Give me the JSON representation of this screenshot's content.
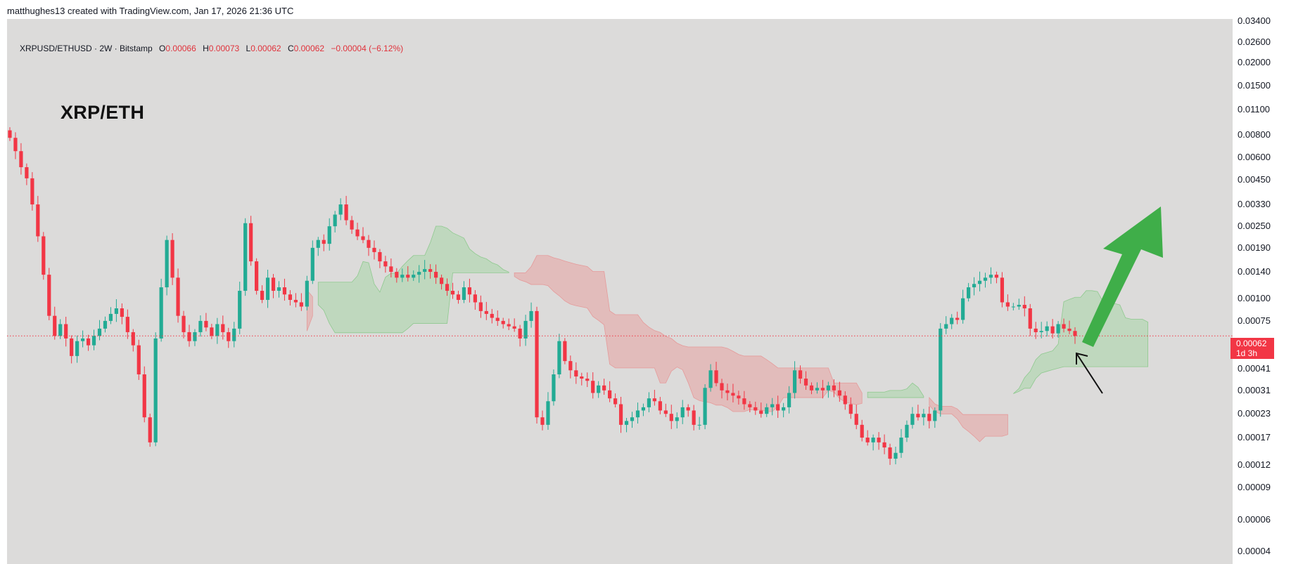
{
  "header": {
    "credit": "matthughes13 created with TradingView.com, Jan 17, 2026 21:36 UTC"
  },
  "legend": {
    "symbol": "XRPUSD/ETHUSD · 2W · Bitstamp",
    "open_label": "O",
    "open": "0.00066",
    "high_label": "H",
    "high": "0.00073",
    "low_label": "L",
    "low": "0.00062",
    "close_label": "C",
    "close": "0.00062",
    "change": "−0.00004 (−6.12%)"
  },
  "annotation_title": "XRP/ETH",
  "price_badge": {
    "price": "0.00062",
    "countdown": "1d 3h"
  },
  "colors": {
    "up": "#22ab94",
    "down": "#f23645",
    "cloud_bear": "#e8a3a3",
    "cloud_bull": "#a8d5a8",
    "arrow": "#3fae49",
    "pane_bg": "#dcdbda"
  },
  "chart_data": {
    "type": "candlestick",
    "title": "XRPUSD/ETHUSD · 2W · Bitstamp",
    "y_scale": "log",
    "ylim": [
      3.5e-05,
      0.034
    ],
    "y_ticks": [
      "0.03400",
      "0.02600",
      "0.02000",
      "0.01500",
      "0.01100",
      "0.00800",
      "0.00600",
      "0.00450",
      "0.00330",
      "0.00250",
      "0.00190",
      "0.00140",
      "0.00100",
      "0.00075",
      "0.00041",
      "0.00031",
      "0.00023",
      "0.00017",
      "0.00012",
      "0.00009",
      "0.00006",
      "0.00004"
    ],
    "last_price": 0.00062,
    "indicator": "Ichimoku Cloud",
    "close_series": [
      0.0077,
      0.0065,
      0.0053,
      0.0046,
      0.0033,
      0.0022,
      0.00135,
      0.0008,
      0.00062,
      0.00072,
      0.0006,
      0.00048,
      0.00058,
      0.0006,
      0.00055,
      0.00062,
      0.00068,
      0.00075,
      0.00082,
      0.00088,
      0.00079,
      0.00065,
      0.00055,
      0.00038,
      0.00022,
      0.00016,
      0.0006,
      0.00115,
      0.0021,
      0.0013,
      0.0008,
      0.00065,
      0.00058,
      0.00065,
      0.00075,
      0.00069,
      0.00062,
      0.00072,
      0.00065,
      0.00058,
      0.00068,
      0.0011,
      0.0026,
      0.0016,
      0.0011,
      0.00098,
      0.0013,
      0.0011,
      0.00115,
      0.00105,
      0.00098,
      0.00095,
      0.0009,
      0.00125,
      0.0019,
      0.0021,
      0.002,
      0.0025,
      0.0029,
      0.0033,
      0.0027,
      0.0024,
      0.0022,
      0.0021,
      0.0019,
      0.0018,
      0.0016,
      0.0015,
      0.0014,
      0.0013,
      0.00135,
      0.0013,
      0.00135,
      0.0014,
      0.00145,
      0.0014,
      0.0013,
      0.0012,
      0.0011,
      0.00105,
      0.00098,
      0.00115,
      0.00105,
      0.00095,
      0.00085,
      0.00082,
      0.00078,
      0.00075,
      0.00072,
      0.0007,
      0.00068,
      0.0006,
      0.00075,
      0.00085,
      0.00022,
      0.0002,
      0.00027,
      0.00038,
      0.00058,
      0.00045,
      0.0004,
      0.00037,
      0.00036,
      0.00035,
      0.0003,
      0.00033,
      0.00031,
      0.00028,
      0.00026,
      0.0002,
      0.00021,
      0.00022,
      0.00024,
      0.00025,
      0.00028,
      0.00027,
      0.00024,
      0.00023,
      0.00021,
      0.00022,
      0.00025,
      0.00024,
      0.0002,
      0.0002,
      0.00032,
      0.0004,
      0.00034,
      0.00031,
      0.0003,
      0.00029,
      0.00028,
      0.00026,
      0.00025,
      0.00024,
      0.00023,
      0.00025,
      0.00026,
      0.00024,
      0.00025,
      0.0003,
      0.0004,
      0.00036,
      0.00033,
      0.00031,
      0.00032,
      0.00031,
      0.00033,
      0.00031,
      0.00029,
      0.00026,
      0.00023,
      0.0002,
      0.00017,
      0.00016,
      0.00017,
      0.00016,
      0.00015,
      0.00013,
      0.00014,
      0.00017,
      0.0002,
      0.00023,
      0.00022,
      0.00023,
      0.00021,
      0.00024,
      0.00068,
      0.00072,
      0.00078,
      0.00076,
      0.001,
      0.00115,
      0.0012,
      0.00125,
      0.0013,
      0.00135,
      0.0013,
      0.00095,
      0.0009,
      0.0009,
      0.00092,
      0.00088,
      0.00068,
      0.00065,
      0.00066,
      0.0007,
      0.00064,
      0.00072,
      0.00068,
      0.00066,
      0.00062
    ]
  }
}
